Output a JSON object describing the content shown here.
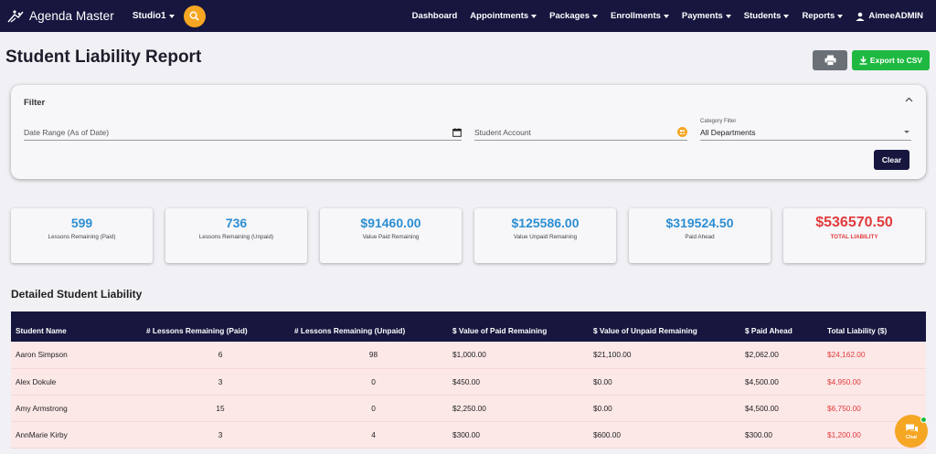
{
  "navbar": {
    "brand": "Agenda Master",
    "studio": "Studio1",
    "links": [
      {
        "label": "Dashboard",
        "dropdown": false
      },
      {
        "label": "Appointments",
        "dropdown": true
      },
      {
        "label": "Packages",
        "dropdown": true
      },
      {
        "label": "Enrollments",
        "dropdown": true
      },
      {
        "label": "Payments",
        "dropdown": true
      },
      {
        "label": "Students",
        "dropdown": true
      },
      {
        "label": "Reports",
        "dropdown": true
      }
    ],
    "user": "AimeeADMIN"
  },
  "header": {
    "title": "Student Liability Report",
    "export_label": "Export to CSV"
  },
  "filter": {
    "title": "Filter",
    "date_placeholder": "Date Range (As of Date)",
    "student_placeholder": "Student Account",
    "category_label": "Category Filter",
    "category_value": "All Departments",
    "clear_label": "Clear"
  },
  "summary": [
    {
      "value": "599",
      "label": "Lessons Remaining (Paid)"
    },
    {
      "value": "736",
      "label": "Lessons Remaining (Unpaid)"
    },
    {
      "value": "$91460.00",
      "label": "Value Paid Remaining"
    },
    {
      "value": "$125586.00",
      "label": "Value Unpaid Remaining"
    },
    {
      "value": "$319524.50",
      "label": "Paid Ahead"
    },
    {
      "value": "$536570.50",
      "label": "TOTAL LIABILITY"
    }
  ],
  "table": {
    "title": "Detailed Student Liability",
    "columns": [
      "Student Name",
      "# Lessons Remaining (Paid)",
      "# Lessons Remaining (Unpaid)",
      "$ Value of Paid Remaining",
      "$ Value of Unpaid Remaining",
      "$ Paid Ahead",
      "Total Liability ($)"
    ],
    "rows": [
      [
        "Aaron Simpson",
        "6",
        "98",
        "$1,000.00",
        "$21,100.00",
        "$2,062.00",
        "$24,162.00"
      ],
      [
        "Alex Dokule",
        "3",
        "0",
        "$450.00",
        "$0.00",
        "$4,500.00",
        "$4,950.00"
      ],
      [
        "Amy Armstrong",
        "15",
        "0",
        "$2,250.00",
        "$0.00",
        "$4,500.00",
        "$6,750.00"
      ],
      [
        "AnnMarie Kirby",
        "3",
        "4",
        "$300.00",
        "$600.00",
        "$300.00",
        "$1,200.00"
      ]
    ]
  },
  "chat": {
    "label": "Chat"
  }
}
